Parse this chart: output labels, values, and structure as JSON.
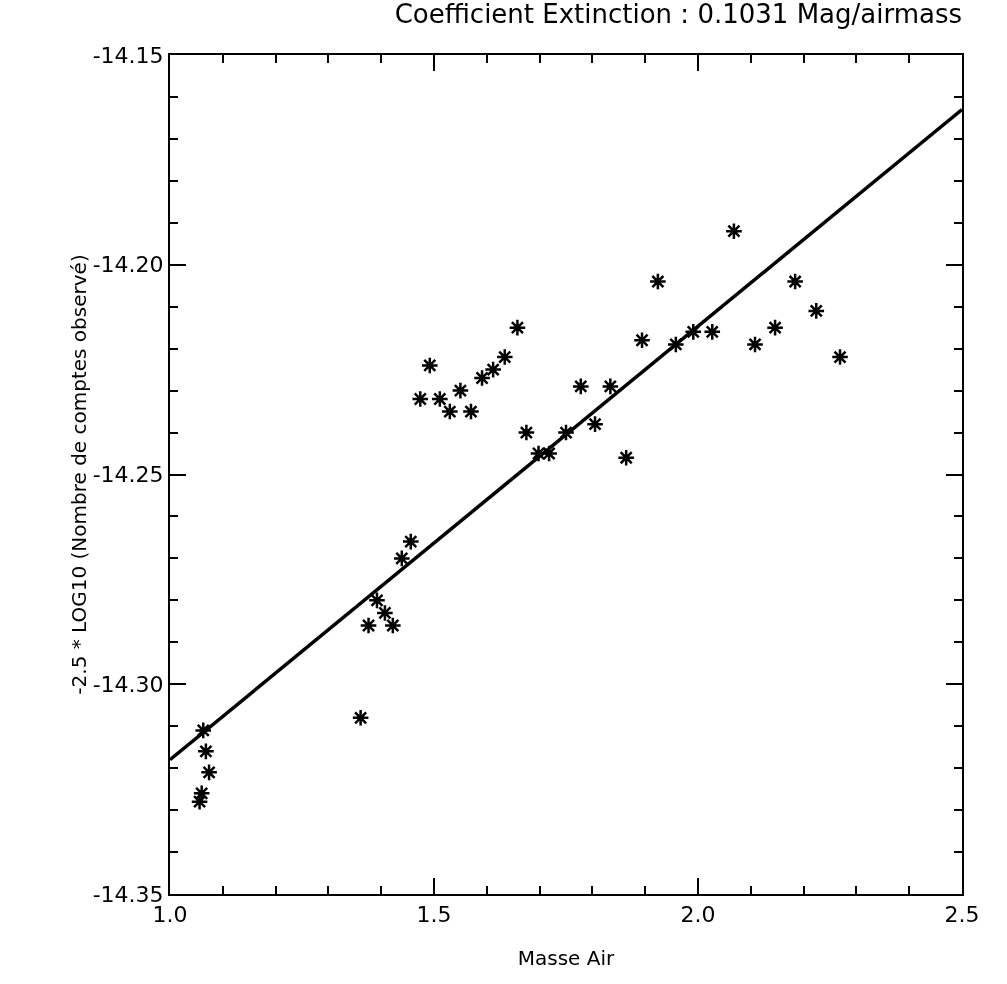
{
  "chart_data": {
    "type": "scatter",
    "title": "Coefficient Extinction : 0.1031 Mag/airmass",
    "xlabel": "Masse Air",
    "ylabel": "-2.5 * LOG10 (Nombre de comptes observé)",
    "xlim": [
      1.0,
      2.5
    ],
    "ylim": [
      -14.35,
      -14.15
    ],
    "xticks": [
      {
        "value": 1.0,
        "label": "1.0"
      },
      {
        "value": 1.1,
        "label": null
      },
      {
        "value": 1.2,
        "label": null
      },
      {
        "value": 1.3,
        "label": null
      },
      {
        "value": 1.4,
        "label": null
      },
      {
        "value": 1.5,
        "label": "1.5"
      },
      {
        "value": 1.6,
        "label": null
      },
      {
        "value": 1.7,
        "label": null
      },
      {
        "value": 1.8,
        "label": null
      },
      {
        "value": 1.9,
        "label": null
      },
      {
        "value": 2.0,
        "label": "2.0"
      },
      {
        "value": 2.1,
        "label": null
      },
      {
        "value": 2.2,
        "label": null
      },
      {
        "value": 2.3,
        "label": null
      },
      {
        "value": 2.4,
        "label": null
      },
      {
        "value": 2.5,
        "label": "2.5"
      }
    ],
    "yticks": [
      {
        "value": -14.35,
        "label": "-14.35"
      },
      {
        "value": -14.34,
        "label": null
      },
      {
        "value": -14.33,
        "label": null
      },
      {
        "value": -14.32,
        "label": null
      },
      {
        "value": -14.31,
        "label": null
      },
      {
        "value": -14.3,
        "label": "-14.30"
      },
      {
        "value": -14.29,
        "label": null
      },
      {
        "value": -14.28,
        "label": null
      },
      {
        "value": -14.27,
        "label": null
      },
      {
        "value": -14.26,
        "label": null
      },
      {
        "value": -14.25,
        "label": "-14.25"
      },
      {
        "value": -14.24,
        "label": null
      },
      {
        "value": -14.23,
        "label": null
      },
      {
        "value": -14.22,
        "label": null
      },
      {
        "value": -14.21,
        "label": null
      },
      {
        "value": -14.2,
        "label": "-14.20"
      },
      {
        "value": -14.19,
        "label": null
      },
      {
        "value": -14.18,
        "label": null
      },
      {
        "value": -14.17,
        "label": null
      },
      {
        "value": -14.16,
        "label": null
      },
      {
        "value": -14.15,
        "label": "-14.15"
      }
    ],
    "grid": false,
    "series": [
      {
        "color": "#000000",
        "marker": "cross",
        "x": [
          1.063,
          1.068,
          1.074,
          1.06,
          1.056,
          1.361,
          1.376,
          1.392,
          1.407,
          1.422,
          1.439,
          1.456,
          1.474,
          1.492,
          1.511,
          1.53,
          1.55,
          1.57,
          1.591,
          1.612,
          1.634,
          1.658,
          1.675,
          1.698,
          1.718,
          1.75,
          1.778,
          1.805,
          1.834,
          1.864,
          1.894,
          1.924,
          1.958,
          1.991,
          2.027,
          2.068,
          2.108,
          2.146,
          2.184,
          2.224,
          2.269
        ],
        "values": [
          -14.311,
          -14.316,
          -14.321,
          -14.326,
          -14.328,
          -14.308,
          -14.286,
          -14.28,
          -14.283,
          -14.286,
          -14.27,
          -14.266,
          -14.232,
          -14.224,
          -14.232,
          -14.235,
          -14.23,
          -14.235,
          -14.227,
          -14.225,
          -14.222,
          -14.215,
          -14.24,
          -14.245,
          -14.245,
          -14.24,
          -14.229,
          -14.238,
          -14.229,
          -14.246,
          -14.218,
          -14.204,
          -14.219,
          -14.216,
          -14.216,
          -14.192,
          -14.219,
          -14.215,
          -14.204,
          -14.211,
          -14.222
        ]
      },
      {
        "type": "line",
        "color": "#000000",
        "marker": "none",
        "line_style": "solid",
        "x": [
          1.0,
          2.5
        ],
        "values": [
          -14.318,
          -14.163
        ]
      }
    ]
  }
}
